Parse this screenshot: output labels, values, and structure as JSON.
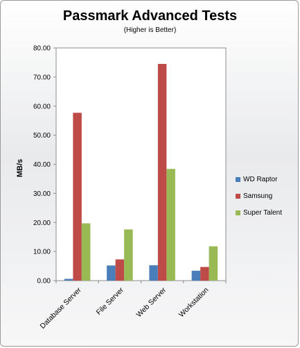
{
  "chart_data": {
    "type": "bar",
    "title": "Passmark Advanced Tests",
    "subtitle": "(Higher is Better)",
    "xlabel": "",
    "ylabel": "MB/s",
    "ylim": [
      0,
      80
    ],
    "yticks": [
      "0.00",
      "10.00",
      "20.00",
      "30.00",
      "40.00",
      "50.00",
      "60.00",
      "70.00",
      "80.00"
    ],
    "categories": [
      "Database Server",
      "File Server",
      "Web Server",
      "Workstation"
    ],
    "series": [
      {
        "name": "WD Raptor",
        "color": "#4a7ebb",
        "values": [
          0.6,
          5.2,
          5.3,
          3.4
        ]
      },
      {
        "name": "Samsung",
        "color": "#be4b48",
        "values": [
          57.7,
          7.3,
          74.5,
          4.7
        ]
      },
      {
        "name": "Super Talent",
        "color": "#98b954",
        "values": [
          19.7,
          17.6,
          38.4,
          11.8
        ]
      }
    ],
    "grid": false,
    "legend_position": "right"
  }
}
